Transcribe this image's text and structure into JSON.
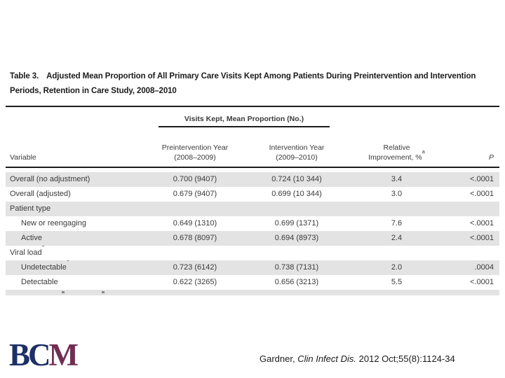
{
  "slide": {
    "title_label": "Table 3.",
    "title_text": "Adjusted Mean Proportion of All Primary Care Visits Kept Among Patients During Preintervention and Intervention Periods, Retention in Care Study, 2008–2010",
    "logo": {
      "part1": "BC",
      "part2": "M"
    },
    "citation": {
      "author": "Gardner, ",
      "journal": "Clin Infect Dis.",
      "rest": " 2012 Oct;55(8):1124-34"
    }
  },
  "colors": {
    "stripe_gray": "#e3e3e3",
    "rule_black": "#1c1c1c",
    "logo_navy": "#1e3066",
    "logo_maroon": "#722e52"
  },
  "table": {
    "spanner": "Visits Kept, Mean Proportion (No.)",
    "headers": {
      "variable": "Variable",
      "pre_line1": "Preintervention Year",
      "pre_line2": "(2008–2009)",
      "int_line1": "Intervention Year",
      "int_line2": "(2009–2010)",
      "rel_line1": "Relative",
      "rel_line2": "Improvement, %",
      "rel_sup": "a",
      "p": "P"
    },
    "rows": [
      {
        "variable": "Overall (no adjustment)",
        "pre": "0.700 (9407)",
        "int": "0.724 (10 344)",
        "rel": "3.4",
        "p": "<.0001"
      },
      {
        "variable": "Overall (adjusted)",
        "pre": "0.679 (9407)",
        "int": "0.699 (10 344)",
        "rel": "3.0",
        "p": "<.0001"
      },
      {
        "variable": "Patient type"
      },
      {
        "variable": "New or reengaging",
        "pre": "0.649 (1310)",
        "int": "0.699 (1371)",
        "rel": "7.6",
        "p": "<.0001"
      },
      {
        "variable": "Active",
        "pre": "0.678 (8097)",
        "int": "0.694 (8973)",
        "rel": "2.4",
        "p": "<.0001"
      },
      {
        "variable": "Viral load",
        "sup": "b"
      },
      {
        "variable": "Undetectable",
        "sup": "c",
        "pre": "0.723 (6142)",
        "int": "0.738 (7131)",
        "rel": "2.0",
        "p": ".0004"
      },
      {
        "variable": "Detectable",
        "pre": "0.622 (3265)",
        "int": "0.656 (3213)",
        "rel": "5.5",
        "p": "<.0001"
      }
    ]
  }
}
